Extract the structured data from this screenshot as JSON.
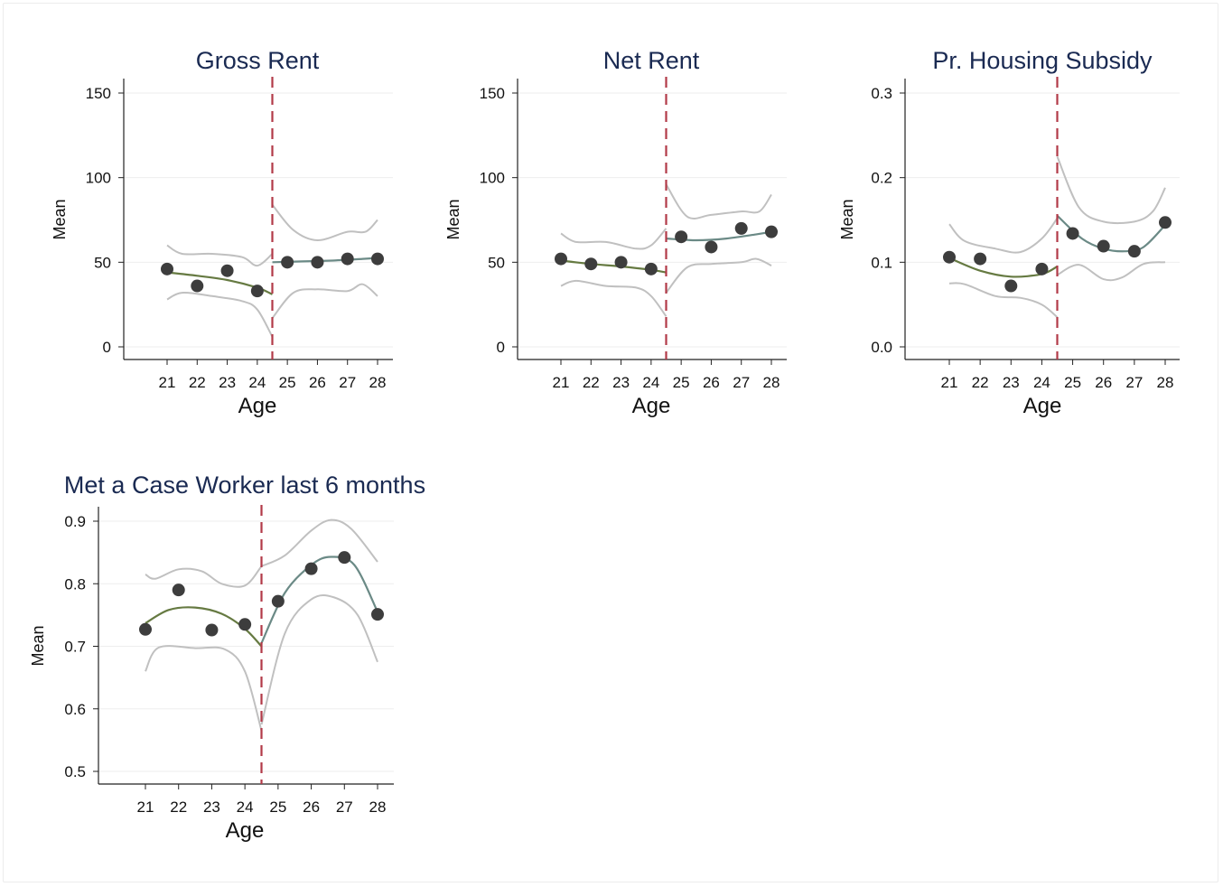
{
  "chart_data": [
    {
      "type": "scatter",
      "title": "Gross Rent",
      "xlabel": "Age",
      "ylabel": "Mean",
      "x_ticks": [
        21,
        22,
        23,
        24,
        25,
        26,
        27,
        28
      ],
      "y_ticks": [
        "0",
        "50",
        "100",
        "150"
      ],
      "ylim": [
        0,
        150
      ],
      "cutoff": 24.5,
      "points": [
        {
          "x": 21,
          "y": 46
        },
        {
          "x": 22,
          "y": 36
        },
        {
          "x": 23,
          "y": 45
        },
        {
          "x": 24,
          "y": 33
        },
        {
          "x": 25,
          "y": 50
        },
        {
          "x": 26,
          "y": 50
        },
        {
          "x": 27,
          "y": 52
        },
        {
          "x": 28,
          "y": 52
        }
      ],
      "fit_left": [
        [
          21,
          44
        ],
        [
          22,
          42
        ],
        [
          23,
          39.5
        ],
        [
          24,
          35
        ],
        [
          24.5,
          31
        ]
      ],
      "fit_right": [
        [
          24.5,
          50
        ],
        [
          25.5,
          50.5
        ],
        [
          26.5,
          51
        ],
        [
          27.5,
          52
        ],
        [
          28,
          52.5
        ]
      ],
      "ci_left_upper": [
        [
          21,
          60
        ],
        [
          21.5,
          55
        ],
        [
          22.5,
          55
        ],
        [
          23.5,
          53
        ],
        [
          24,
          48
        ],
        [
          24.5,
          55
        ]
      ],
      "ci_left_lower": [
        [
          21,
          28
        ],
        [
          21.5,
          32
        ],
        [
          22.5,
          30
        ],
        [
          23.5,
          27
        ],
        [
          24,
          22
        ],
        [
          24.5,
          6
        ]
      ],
      "ci_right_upper": [
        [
          24.5,
          84
        ],
        [
          25.2,
          69
        ],
        [
          26,
          63
        ],
        [
          27,
          68
        ],
        [
          27.6,
          68
        ],
        [
          28,
          75
        ]
      ],
      "ci_right_lower": [
        [
          24.5,
          17
        ],
        [
          25.2,
          32
        ],
        [
          26,
          34
        ],
        [
          27,
          33
        ],
        [
          27.5,
          37
        ],
        [
          28,
          30
        ]
      ]
    },
    {
      "type": "scatter",
      "title": "Net Rent",
      "xlabel": "Age",
      "ylabel": "Mean",
      "x_ticks": [
        21,
        22,
        23,
        24,
        25,
        26,
        27,
        28
      ],
      "y_ticks": [
        "0",
        "50",
        "100",
        "150"
      ],
      "ylim": [
        0,
        150
      ],
      "cutoff": 24.5,
      "points": [
        {
          "x": 21,
          "y": 52
        },
        {
          "x": 22,
          "y": 49
        },
        {
          "x": 23,
          "y": 50
        },
        {
          "x": 24,
          "y": 46
        },
        {
          "x": 25,
          "y": 65
        },
        {
          "x": 26,
          "y": 59
        },
        {
          "x": 27,
          "y": 70
        },
        {
          "x": 28,
          "y": 68
        }
      ],
      "fit_left": [
        [
          21,
          51
        ],
        [
          22,
          49
        ],
        [
          23,
          47.5
        ],
        [
          24,
          45.5
        ],
        [
          24.5,
          44
        ]
      ],
      "fit_right": [
        [
          24.5,
          64
        ],
        [
          25.5,
          63
        ],
        [
          26.5,
          64
        ],
        [
          27.5,
          66.5
        ],
        [
          28,
          68
        ]
      ],
      "ci_left_upper": [
        [
          21,
          67
        ],
        [
          21.5,
          62
        ],
        [
          22.5,
          62
        ],
        [
          23.5,
          58
        ],
        [
          24,
          60
        ],
        [
          24.5,
          70
        ]
      ],
      "ci_left_lower": [
        [
          21,
          36
        ],
        [
          21.5,
          39
        ],
        [
          22.5,
          36
        ],
        [
          23.5,
          35
        ],
        [
          24,
          30
        ],
        [
          24.5,
          18
        ]
      ],
      "ci_right_upper": [
        [
          24.5,
          96
        ],
        [
          25.2,
          77
        ],
        [
          26,
          78
        ],
        [
          27,
          80
        ],
        [
          27.6,
          80
        ],
        [
          28,
          90
        ]
      ],
      "ci_right_lower": [
        [
          24.5,
          32
        ],
        [
          25.2,
          47
        ],
        [
          26,
          49
        ],
        [
          27,
          50
        ],
        [
          27.5,
          52
        ],
        [
          28,
          48
        ]
      ]
    },
    {
      "type": "scatter",
      "title": "Pr. Housing Subsidy",
      "xlabel": "Age",
      "ylabel": "Mean",
      "x_ticks": [
        21,
        22,
        23,
        24,
        25,
        26,
        27,
        28
      ],
      "y_ticks": [
        "0.0",
        "0.1",
        "0.2",
        "0.3"
      ],
      "ylim": [
        0,
        0.3
      ],
      "cutoff": 24.5,
      "points": [
        {
          "x": 21,
          "y": 0.106
        },
        {
          "x": 22,
          "y": 0.104
        },
        {
          "x": 23,
          "y": 0.072
        },
        {
          "x": 24,
          "y": 0.092
        },
        {
          "x": 25,
          "y": 0.134
        },
        {
          "x": 26,
          "y": 0.119
        },
        {
          "x": 27,
          "y": 0.113
        },
        {
          "x": 28,
          "y": 0.147
        }
      ],
      "fit_left": [
        [
          21,
          0.105
        ],
        [
          22,
          0.09
        ],
        [
          23,
          0.083
        ],
        [
          24,
          0.086
        ],
        [
          24.5,
          0.095
        ]
      ],
      "fit_right": [
        [
          24.5,
          0.155
        ],
        [
          25.3,
          0.128
        ],
        [
          26,
          0.116
        ],
        [
          26.7,
          0.113
        ],
        [
          27.3,
          0.118
        ],
        [
          28,
          0.144
        ]
      ],
      "ci_left_upper": [
        [
          21,
          0.145
        ],
        [
          21.5,
          0.125
        ],
        [
          22.5,
          0.116
        ],
        [
          23.3,
          0.112
        ],
        [
          24,
          0.128
        ],
        [
          24.5,
          0.152
        ]
      ],
      "ci_left_lower": [
        [
          21,
          0.075
        ],
        [
          21.5,
          0.074
        ],
        [
          22.5,
          0.06
        ],
        [
          23.3,
          0.058
        ],
        [
          24,
          0.05
        ],
        [
          24.5,
          0.035
        ]
      ],
      "ci_right_upper": [
        [
          24.5,
          0.225
        ],
        [
          25.2,
          0.165
        ],
        [
          26,
          0.148
        ],
        [
          27,
          0.148
        ],
        [
          27.6,
          0.16
        ],
        [
          28,
          0.188
        ]
      ],
      "ci_right_lower": [
        [
          24.5,
          0.085
        ],
        [
          25.2,
          0.097
        ],
        [
          26,
          0.08
        ],
        [
          26.6,
          0.082
        ],
        [
          27.3,
          0.098
        ],
        [
          28,
          0.1
        ]
      ]
    },
    {
      "type": "scatter",
      "title": "Met a Case Worker last 6 months",
      "xlabel": "Age",
      "ylabel": "Mean",
      "x_ticks": [
        21,
        22,
        23,
        24,
        25,
        26,
        27,
        28
      ],
      "y_ticks": [
        "0.5",
        "0.6",
        "0.7",
        "0.8",
        "0.9"
      ],
      "ylim": [
        0.5,
        0.9
      ],
      "cutoff": 24.5,
      "points": [
        {
          "x": 21,
          "y": 0.727
        },
        {
          "x": 22,
          "y": 0.79
        },
        {
          "x": 23,
          "y": 0.726
        },
        {
          "x": 24,
          "y": 0.735
        },
        {
          "x": 25,
          "y": 0.772
        },
        {
          "x": 26,
          "y": 0.824
        },
        {
          "x": 27,
          "y": 0.842
        },
        {
          "x": 28,
          "y": 0.751
        }
      ],
      "fit_left": [
        [
          21,
          0.737
        ],
        [
          21.7,
          0.758
        ],
        [
          22.5,
          0.762
        ],
        [
          23.3,
          0.752
        ],
        [
          24,
          0.728
        ],
        [
          24.5,
          0.7
        ]
      ],
      "fit_right": [
        [
          24.5,
          0.705
        ],
        [
          25.2,
          0.785
        ],
        [
          26,
          0.83
        ],
        [
          26.6,
          0.843
        ],
        [
          27.3,
          0.83
        ],
        [
          28,
          0.755
        ]
      ],
      "ci_left_upper": [
        [
          21,
          0.815
        ],
        [
          21.3,
          0.808
        ],
        [
          22,
          0.823
        ],
        [
          22.7,
          0.82
        ],
        [
          23.3,
          0.8
        ],
        [
          24,
          0.797
        ],
        [
          24.5,
          0.828
        ]
      ],
      "ci_left_lower": [
        [
          21,
          0.66
        ],
        [
          21.4,
          0.698
        ],
        [
          22.5,
          0.697
        ],
        [
          23.4,
          0.695
        ],
        [
          24,
          0.66
        ],
        [
          24.5,
          0.565
        ]
      ],
      "ci_right_upper": [
        [
          24.5,
          0.828
        ],
        [
          25.2,
          0.845
        ],
        [
          26,
          0.885
        ],
        [
          26.6,
          0.902
        ],
        [
          27.2,
          0.888
        ],
        [
          28,
          0.835
        ]
      ],
      "ci_right_lower": [
        [
          24.5,
          0.575
        ],
        [
          25.2,
          0.72
        ],
        [
          26,
          0.775
        ],
        [
          26.7,
          0.778
        ],
        [
          27.4,
          0.75
        ],
        [
          28,
          0.675
        ]
      ]
    }
  ]
}
